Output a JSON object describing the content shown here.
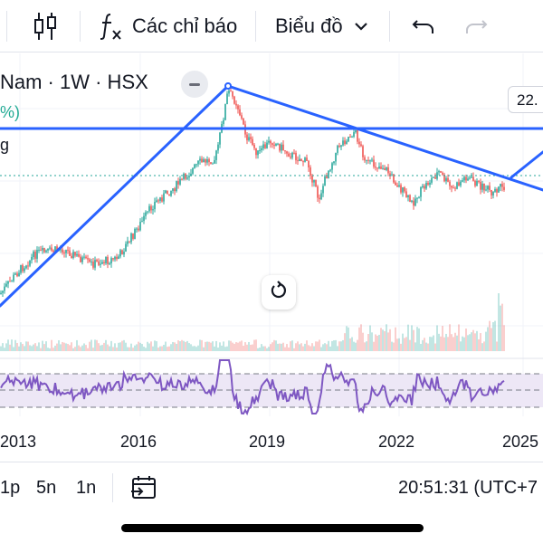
{
  "toolbar": {
    "indicators_label": "Các chỉ báo",
    "chart_type_label": "Biểu đồ"
  },
  "chart": {
    "symbol_label": "Nam · 1W · HSX",
    "change_pct_fragment": "%)",
    "legend_fragment": "g",
    "last_price_label": "22.",
    "colors": {
      "trendline": "#2962ff",
      "up_candle": "#26a69a",
      "down_candle": "#ef5350",
      "rsi_line": "#7e57c2",
      "rsi_band": "#ede7f6",
      "price_line": "#26a69a"
    }
  },
  "time_axis": {
    "labels": [
      "2013",
      "2016",
      "2019",
      "2022",
      "2025"
    ]
  },
  "bottom_bar": {
    "interval_1": "1p",
    "interval_2": "5n",
    "interval_3": "1n",
    "clock": "20:51:31 (UTC+7"
  }
}
